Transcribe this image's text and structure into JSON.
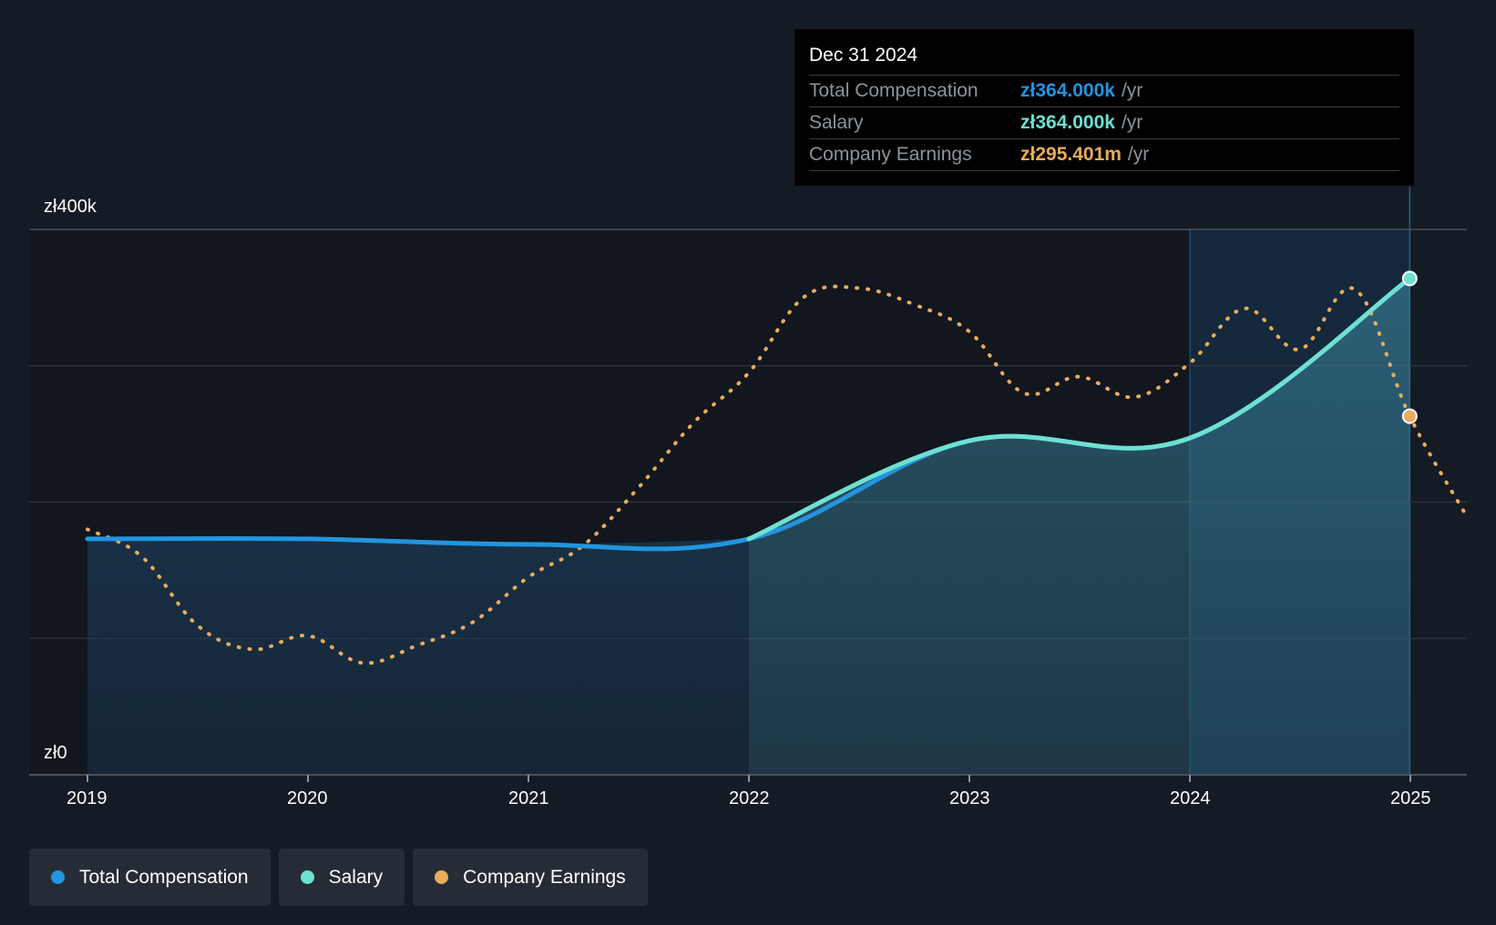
{
  "chart_data": {
    "type": "line",
    "title": "",
    "xlabel": "",
    "ylabel": "",
    "x_ticks": [
      "2019",
      "2020",
      "2021",
      "2022",
      "2023",
      "2024",
      "2025"
    ],
    "y_ticks": [
      {
        "value": 0,
        "label": "zł0"
      },
      {
        "value": 400,
        "label": "zł400k"
      }
    ],
    "ylim": [
      0,
      400
    ],
    "grid": true,
    "legend_position": "bottom-left",
    "series": [
      {
        "name": "Total Compensation",
        "color": "#2394df",
        "unit": "zł thousands",
        "points": [
          {
            "date": "2019-01-01",
            "value": 173
          },
          {
            "date": "2020-01-01",
            "value": 173
          },
          {
            "date": "2021-01-01",
            "value": 169
          },
          {
            "date": "2022-01-01",
            "value": 173
          },
          {
            "date": "2023-01-01",
            "value": 245
          },
          {
            "date": "2024-01-01",
            "value": 247
          },
          {
            "date": "2024-12-31",
            "value": 364
          }
        ]
      },
      {
        "name": "Salary",
        "color": "#6ee0d1",
        "unit": "zł thousands",
        "points": [
          {
            "date": "2022-01-01",
            "value": 173
          },
          {
            "date": "2023-01-01",
            "value": 245
          },
          {
            "date": "2024-01-01",
            "value": 247
          },
          {
            "date": "2024-12-31",
            "value": 364
          }
        ]
      },
      {
        "name": "Company Earnings",
        "color": "#e9ac5b",
        "unit": "relative to compensation axis",
        "points": [
          {
            "date": "2019-01-01",
            "value": 180
          },
          {
            "date": "2019-04-01",
            "value": 160
          },
          {
            "date": "2019-07-01",
            "value": 110
          },
          {
            "date": "2019-10-01",
            "value": 92
          },
          {
            "date": "2020-01-01",
            "value": 102
          },
          {
            "date": "2020-04-01",
            "value": 82
          },
          {
            "date": "2020-07-01",
            "value": 95
          },
          {
            "date": "2020-10-01",
            "value": 112
          },
          {
            "date": "2021-01-01",
            "value": 145
          },
          {
            "date": "2021-04-01",
            "value": 168
          },
          {
            "date": "2021-07-01",
            "value": 210
          },
          {
            "date": "2021-10-01",
            "value": 258
          },
          {
            "date": "2022-01-01",
            "value": 295
          },
          {
            "date": "2022-04-01",
            "value": 350
          },
          {
            "date": "2022-07-01",
            "value": 357
          },
          {
            "date": "2022-10-01",
            "value": 345
          },
          {
            "date": "2023-01-01",
            "value": 325
          },
          {
            "date": "2023-04-01",
            "value": 280
          },
          {
            "date": "2023-07-01",
            "value": 292
          },
          {
            "date": "2023-10-01",
            "value": 277
          },
          {
            "date": "2024-01-01",
            "value": 302
          },
          {
            "date": "2024-04-01",
            "value": 342
          },
          {
            "date": "2024-07-01",
            "value": 312
          },
          {
            "date": "2024-10-01",
            "value": 356
          },
          {
            "date": "2024-12-31",
            "value": 263
          },
          {
            "date": "2025-04-01",
            "value": 192
          }
        ]
      }
    ],
    "highlight": {
      "from": "2024-01-01",
      "to": "2024-12-31"
    },
    "tooltip": {
      "date": "Dec 31 2024",
      "rows": [
        {
          "label": "Total Compensation",
          "value": "zł364.000k",
          "unit": "/yr",
          "color": "#2394df"
        },
        {
          "label": "Salary",
          "value": "zł364.000k",
          "unit": "/yr",
          "color": "#6ee0d1"
        },
        {
          "label": "Company Earnings",
          "value": "zł295.401m",
          "unit": "/yr",
          "color": "#e9ac5b"
        }
      ]
    }
  },
  "legend": [
    {
      "label": "Total Compensation",
      "color": "#2394df"
    },
    {
      "label": "Salary",
      "color": "#6ee0d1"
    },
    {
      "label": "Company Earnings",
      "color": "#e9ac5b"
    }
  ]
}
